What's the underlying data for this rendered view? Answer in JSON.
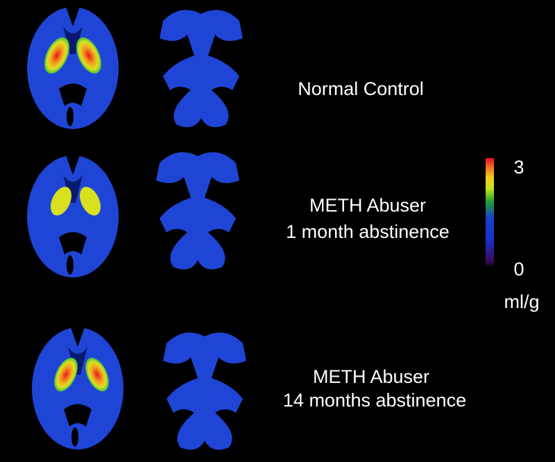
{
  "rows": [
    {
      "lines": [
        "Normal Control"
      ]
    },
    {
      "lines": [
        "METH Abuser",
        "1 month abstinence"
      ]
    },
    {
      "lines": [
        "METH Abuser",
        "14 months abstinence"
      ]
    }
  ],
  "colorbar": {
    "max_label": "3",
    "min_label": "0",
    "unit": "ml/g"
  }
}
